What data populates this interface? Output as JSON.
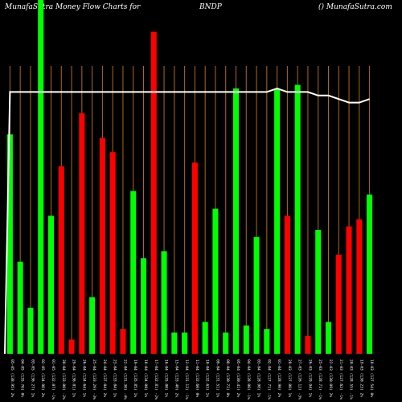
{
  "header": {
    "left": "MunafaSutra  Money Flow  Charts for",
    "symbol": "BNDP",
    "right": "() MunafaSutra.com"
  },
  "colors": {
    "background": "#000000",
    "up": "#00ff00",
    "down": "#ff0000",
    "grid": "#b06a10",
    "line": "#ffffff",
    "text": "#ffffff"
  },
  "chart_data": {
    "type": "bar",
    "title": "",
    "ylim": [
      0,
      100
    ],
    "grid": "vertical",
    "categories": [
      "05-05 (138.95) 2%",
      "04-05 (135.76) 0%",
      "03-05 (136.27) 1%",
      "02-05 (134.98) 2%",
      "01-05 (132.07) -1%",
      "30-04 (133.00) -2%",
      "29-04 (136.01) 1%",
      "26-04 (134.64) 1%",
      "25-04 (133.29) -3%",
      "24-04 (137.04) 2%",
      "23-04 (133.04) 1%",
      "22-04 (131.30) -4%",
      "19-04 (135.85) 1%",
      "18-04 (134.00) 1%",
      "17-04 (132.81) -2%",
      "16-04 (135.00) 1%",
      "15-04 (133.40) 2%",
      "12-04 (131.13) -1%",
      "11-04 (132.60) 0%",
      "10-04 (132.63) 1%",
      "09-04 (131.51) 1%",
      "08-04 (130.72) 0%",
      "05-04 (130.41) 2%",
      "04-04 (128.00) -1%",
      "03-04 (128.98) 1%",
      "02-04 (127.71) -1%",
      "01-04 (128.90) 2%",
      "28-03 (127.00) 1%",
      "27-03 (126.12) -3%",
      "26-03 (129.94) 1%",
      "25-03 (128.71) -1%",
      "22-03 (130.09) 2%",
      "21-03 (127.62) -1%",
      "20-03 (128.55) -1%",
      "19-03 (130.23) 2%",
      "18-03 (127.54) 0%"
    ],
    "series": [
      {
        "values": [
          62,
          26,
          13,
          100,
          39,
          53,
          4,
          68,
          16,
          61,
          57,
          7,
          46,
          27,
          91,
          29,
          6,
          6,
          54,
          9,
          41,
          6,
          75,
          8,
          33,
          7,
          75,
          39,
          76,
          5,
          35,
          9,
          28,
          36,
          38,
          45
        ],
        "colors": [
          "up",
          "up",
          "up",
          "up",
          "up",
          "down",
          "down",
          "down",
          "up",
          "down",
          "down",
          "down",
          "up",
          "up",
          "down",
          "up",
          "up",
          "up",
          "down",
          "up",
          "up",
          "up",
          "up",
          "up",
          "up",
          "up",
          "up",
          "down",
          "up",
          "down",
          "up",
          "up",
          "down",
          "down",
          "down",
          "up"
        ]
      }
    ],
    "line": [
      74,
      74,
      74,
      74,
      74,
      74,
      74,
      74,
      74,
      74,
      74,
      74,
      74,
      74,
      74,
      74,
      74,
      74,
      74,
      74,
      74,
      74,
      74,
      74,
      74,
      74,
      75,
      74,
      74,
      74,
      73,
      73,
      72,
      71,
      71,
      72
    ]
  }
}
